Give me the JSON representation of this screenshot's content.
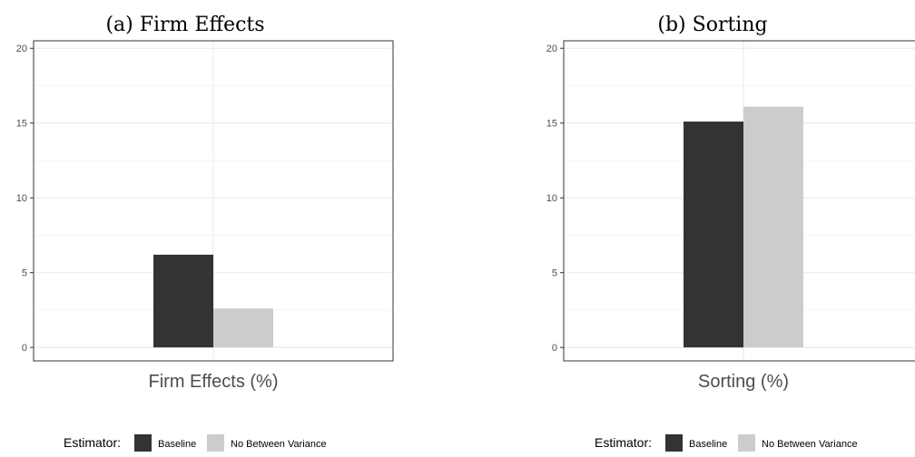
{
  "chart_data": [
    {
      "type": "bar",
      "title": "(a) Firm Effects",
      "xlabel": "Firm Effects (%)",
      "ylabel": "",
      "ylim": [
        -0.9,
        20.5
      ],
      "yticks": [
        0,
        5,
        10,
        15,
        20
      ],
      "grid": true,
      "series": [
        {
          "name": "Baseline",
          "values": [
            6.2
          ]
        },
        {
          "name": "No Between Variance",
          "values": [
            2.6
          ]
        }
      ],
      "legend": {
        "title": "Estimator:",
        "position": "bottom"
      }
    },
    {
      "type": "bar",
      "title": "(b) Sorting",
      "xlabel": "Sorting (%)",
      "ylabel": "",
      "ylim": [
        -0.9,
        20.5
      ],
      "yticks": [
        0,
        5,
        10,
        15,
        20
      ],
      "grid": true,
      "series": [
        {
          "name": "Baseline",
          "values": [
            15.1
          ]
        },
        {
          "name": "No Between Variance",
          "values": [
            16.1
          ]
        }
      ],
      "legend": {
        "title": "Estimator:",
        "position": "bottom"
      }
    }
  ],
  "colors": {
    "baseline": "#333333",
    "no_between_variance": "#cccccc",
    "grid_major": "#ebebeb",
    "grid_minor": "#f5f5f5",
    "panel_border": "#333333"
  }
}
